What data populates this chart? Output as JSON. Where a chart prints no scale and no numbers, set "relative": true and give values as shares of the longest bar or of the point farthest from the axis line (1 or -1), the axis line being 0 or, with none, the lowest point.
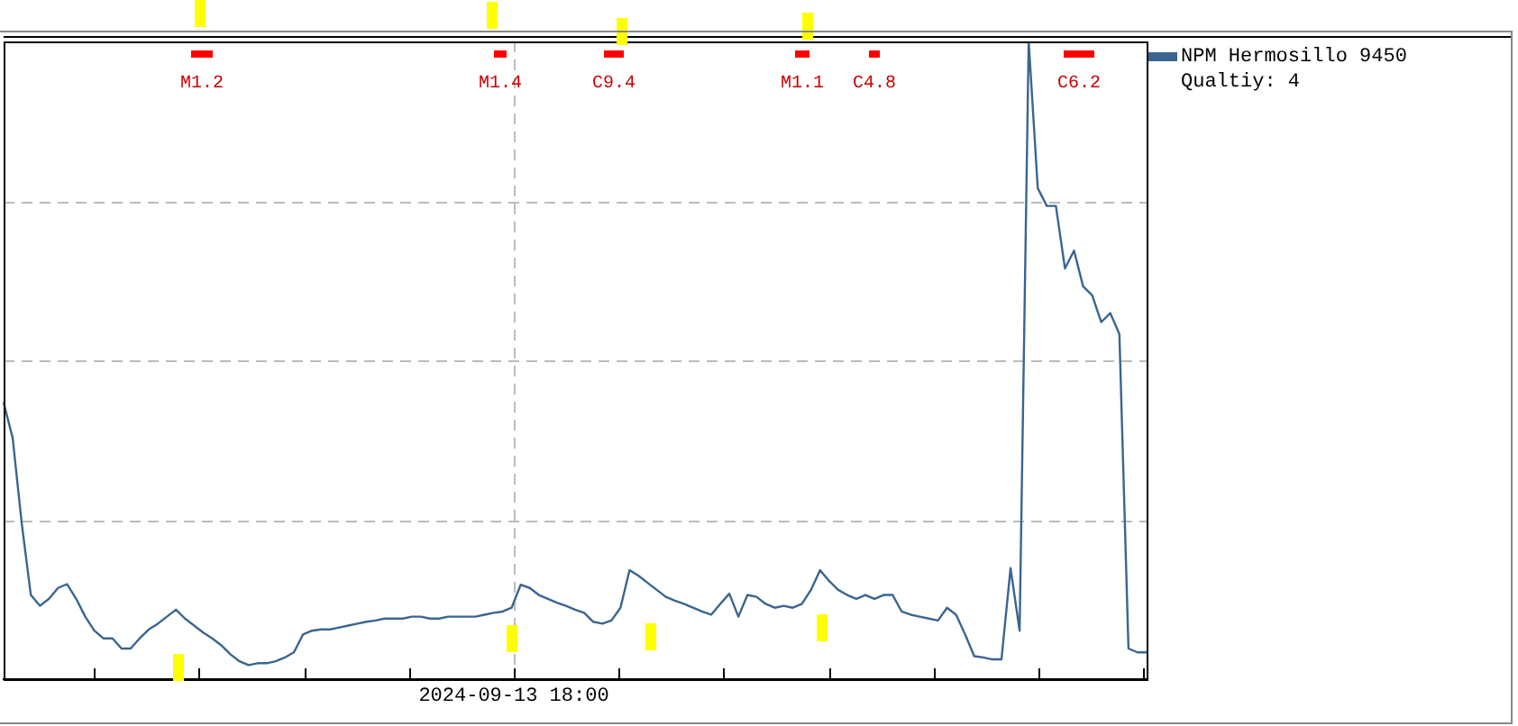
{
  "chart_data": {
    "type": "line",
    "relative": true,
    "grid": true,
    "legend": "right",
    "marker": "none",
    "line_style": "solid",
    "categories": [
      null,
      null,
      null,
      null,
      null,
      null,
      null,
      null,
      null,
      null,
      null,
      null,
      null,
      null,
      null,
      null,
      null,
      null,
      null,
      null,
      null,
      null,
      null,
      null,
      null,
      null,
      null,
      null,
      null,
      null,
      null,
      null,
      null,
      null,
      null,
      null,
      null,
      null,
      null,
      null,
      null,
      null,
      null,
      null,
      null,
      null,
      null,
      null,
      null,
      null,
      null,
      null,
      null,
      null,
      null,
      null,
      null,
      null,
      null,
      null,
      null,
      null,
      null,
      null,
      null,
      null,
      null,
      null,
      null,
      null,
      null,
      null,
      null,
      null,
      null,
      null,
      null,
      null,
      null,
      null,
      null,
      null,
      null,
      null,
      null,
      null,
      null,
      null,
      null,
      null,
      null,
      null,
      null,
      null,
      null,
      null,
      null,
      null,
      null,
      null,
      null,
      null,
      null,
      null,
      null,
      null,
      null,
      null,
      null,
      null,
      null,
      null,
      null,
      null,
      null,
      null,
      null,
      null,
      null,
      null,
      null,
      null,
      null,
      null,
      null,
      null,
      null
    ],
    "annotations": [
      "M1.2",
      "M1.4",
      "C9.4",
      "M1.1",
      "C4.8",
      "C6.2",
      "Qualtiy: 4",
      "2024-09-13 18:00"
    ],
    "series": [
      {
        "name": "NPM Hermosillo 9450",
        "color": "#3a6590",
        "values": [
          0.434,
          0.378,
          0.244,
          0.132,
          0.115,
          0.126,
          0.143,
          0.149,
          0.126,
          0.098,
          0.076,
          0.064,
          0.064,
          0.048,
          0.048,
          0.064,
          0.078,
          0.087,
          0.098,
          0.109,
          0.095,
          0.084,
          0.073,
          0.064,
          0.053,
          0.039,
          0.028,
          0.022,
          0.025,
          0.025,
          0.028,
          0.034,
          0.042,
          0.07,
          0.076,
          0.078,
          0.078,
          0.081,
          0.084,
          0.087,
          0.09,
          0.092,
          0.095,
          0.095,
          0.095,
          0.098,
          0.098,
          0.095,
          0.095,
          0.098,
          0.098,
          0.098,
          0.098,
          0.101,
          0.104,
          0.106,
          0.112,
          0.148,
          0.143,
          0.132,
          0.126,
          0.12,
          0.115,
          0.109,
          0.104,
          0.09,
          0.087,
          0.092,
          0.112,
          0.171,
          0.162,
          0.151,
          0.14,
          0.129,
          0.123,
          0.118,
          0.112,
          0.106,
          0.101,
          0.118,
          0.134,
          0.098,
          0.132,
          0.129,
          0.118,
          0.112,
          0.115,
          0.112,
          0.118,
          0.14,
          0.171,
          0.154,
          0.14,
          0.132,
          0.126,
          0.132,
          0.126,
          0.132,
          0.132,
          0.106,
          0.101,
          0.098,
          0.095,
          0.092,
          0.112,
          0.101,
          0.07,
          0.036,
          0.034,
          0.031,
          0.031,
          0.174,
          0.076,
          1,
          0.77,
          0.742,
          0.742,
          0.644,
          0.672,
          0.616,
          0.602,
          0.56,
          0.574,
          0.541,
          0.048,
          0.042,
          0.042
        ]
      }
    ]
  }
}
